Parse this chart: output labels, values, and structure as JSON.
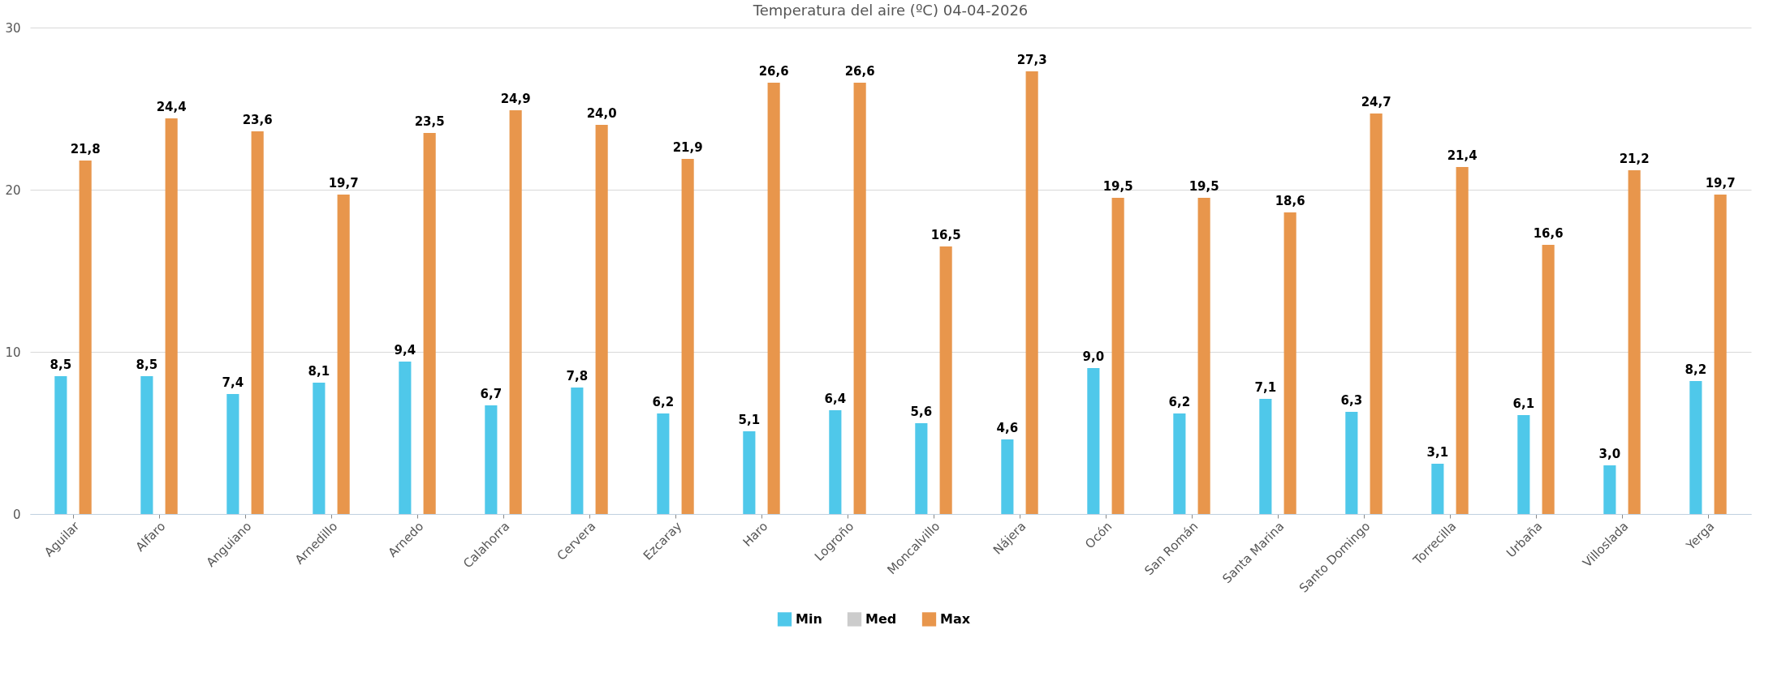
{
  "chart_data": {
    "type": "bar",
    "title": "Temperatura del aire (ºC) 04-04-2026",
    "categories": [
      "Aguilar",
      "Alfaro",
      "Anguiano",
      "Arnedillo",
      "Arnedo",
      "Calahorra",
      "Cervera",
      "Ezcaray",
      "Haro",
      "Logroño",
      "Moncalvillo",
      "Nájera",
      "Ocón",
      "San Román",
      "Santa Marina",
      "Santo Domingo",
      "Torrecilla",
      "Urbaña",
      "Villoslada",
      "Yerga"
    ],
    "series": [
      {
        "name": "Min",
        "color": "#4fc8ea",
        "values": [
          8.5,
          8.5,
          7.4,
          8.1,
          9.4,
          6.7,
          7.8,
          6.2,
          5.1,
          6.4,
          5.6,
          4.6,
          9.0,
          6.2,
          7.1,
          6.3,
          3.1,
          6.1,
          3.0,
          8.2
        ],
        "value_labels": [
          "8,5",
          "8,5",
          "7,4",
          "8,1",
          "9,4",
          "6,7",
          "7,8",
          "6,2",
          "5,1",
          "6,4",
          "5,6",
          "4,6",
          "9,0",
          "6,2",
          "7,1",
          "6,3",
          "3,1",
          "6,1",
          "3,0",
          "8,2"
        ]
      },
      {
        "name": "Med",
        "color": "#cccccc",
        "values": [
          null,
          null,
          null,
          null,
          null,
          null,
          null,
          null,
          null,
          null,
          null,
          null,
          null,
          null,
          null,
          null,
          null,
          null,
          null,
          null
        ]
      },
      {
        "name": "Max",
        "color": "#e8964c",
        "values": [
          21.8,
          24.4,
          23.6,
          19.7,
          23.5,
          24.9,
          24.0,
          21.9,
          26.6,
          26.6,
          16.5,
          27.3,
          19.5,
          19.5,
          18.6,
          24.7,
          21.4,
          16.6,
          21.2,
          19.7
        ],
        "value_labels": [
          "21,8",
          "24,4",
          "23,6",
          "19,7",
          "23,5",
          "24,9",
          "24,0",
          "21,9",
          "26,6",
          "26,6",
          "16,5",
          "27,3",
          "19,5",
          "19,5",
          "18,6",
          "24,7",
          "21,4",
          "16,6",
          "21,2",
          "19,7"
        ]
      }
    ],
    "ylim": [
      0,
      30
    ],
    "yticks": [
      0,
      10,
      20,
      30
    ],
    "grid": "y",
    "legend": "bottom"
  }
}
